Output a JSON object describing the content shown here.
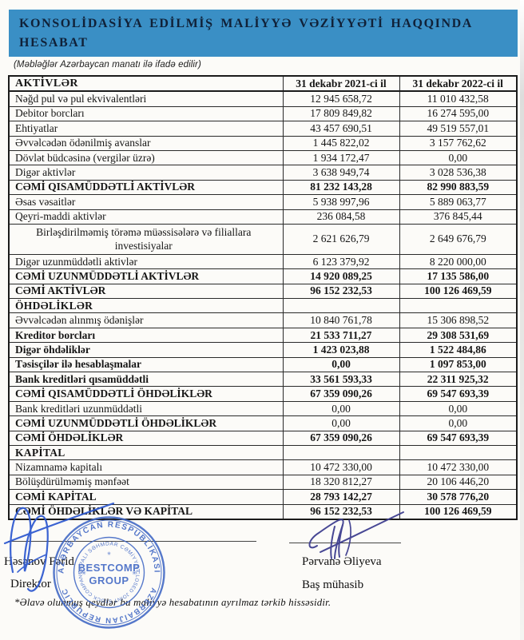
{
  "report": {
    "title_line1": "KONSOLİDASİYA EDİLMİŞ MALİYYƏ VƏZİYYƏTİ HAQQINDA",
    "title_line2": "HESABAT",
    "subtitle": "(Məbləğlər Azərbaycan manatı ilə ifadə edilir)",
    "footnote": "*Əlavə olunmuş qeydlər bu maliyyə hesabatının ayrılmaz tərkib hissəsidir."
  },
  "colors": {
    "band_blue": "#3a8fc5",
    "title_text": "#102138",
    "stamp_blue": "#3f66c4",
    "sig_left_ink": "#2b57cf",
    "sig_right_ink": "#3e3e8f"
  },
  "table": {
    "columns": [
      "AKTİVLƏR",
      "31 dekabr 2021-ci il",
      "31 dekabr 2022-ci il"
    ],
    "rows": [
      {
        "label": "Nəğd pul və pul ekvivalentləri",
        "val_2021": "12 945 658,72",
        "val_2022": "11 010 432,58",
        "emphasis": "normal"
      },
      {
        "label": "Debitor borcları",
        "val_2021": "17 809 849,82",
        "val_2022": "16 274 595,00",
        "emphasis": "normal"
      },
      {
        "label": "Ehtiyatlar",
        "val_2021": "43 457 690,51",
        "val_2022": "49 519 557,01",
        "emphasis": "normal"
      },
      {
        "label": "Əvvəlcədən ödənilmiş avanslar",
        "val_2021": "1 445 822,02",
        "val_2022": "3 157 762,62",
        "emphasis": "normal"
      },
      {
        "label": "Dövlət büdcəsinə (vergilər üzrə)",
        "val_2021": "1 934 172,47",
        "val_2022": "0,00",
        "emphasis": "normal"
      },
      {
        "label": "Digər aktivlər",
        "val_2021": "3 638 949,74",
        "val_2022": "3 028 536,38",
        "emphasis": "normal"
      },
      {
        "label": "CƏMİ QISAMÜDDƏTLİ AKTİVLƏR",
        "val_2021": "81 232 143,28",
        "val_2022": "82 990 883,59",
        "emphasis": "total"
      },
      {
        "label": "Əsas vəsaitlər",
        "val_2021": "5 938 997,96",
        "val_2022": "5 889 063,77",
        "emphasis": "normal"
      },
      {
        "label": "Qeyri-maddi aktivlər",
        "val_2021": "236 084,58",
        "val_2022": "376 845,44",
        "emphasis": "normal"
      },
      {
        "label": "Birləşdirilməmiş törəmə müəssisələrə və filiallara investisiyalar",
        "val_2021": "2 621 626,79",
        "val_2022": "2 649 676,79",
        "emphasis": "indent"
      },
      {
        "label": "Digər uzunmüddətli aktivlər",
        "val_2021": "6 123 379,92",
        "val_2022": "8 220 000,00",
        "emphasis": "normal"
      },
      {
        "label": "CƏMİ UZUNMÜDDƏTLİ AKTİVLƏR",
        "val_2021": "14 920 089,25",
        "val_2022": "17 135 586,00",
        "emphasis": "total"
      },
      {
        "label": "CƏMİ AKTİVLƏR",
        "val_2021": "96 152 232,53",
        "val_2022": "100 126 469,59",
        "emphasis": "total"
      },
      {
        "label": "ÖHDƏLİKLƏR",
        "val_2021": "",
        "val_2022": "",
        "emphasis": "section"
      },
      {
        "label": "Əvvəlcədən alınmış ödənişlər",
        "val_2021": "10 840 761,78",
        "val_2022": "15 306 898,52",
        "emphasis": "normal"
      },
      {
        "label": "Kreditor borcları",
        "val_2021": "21 533 711,27",
        "val_2022": "29 308 531,69",
        "emphasis": "total"
      },
      {
        "label": "Digər öhdəliklər",
        "val_2021": "1 423 023,88",
        "val_2022": "1 522 484,86",
        "emphasis": "total"
      },
      {
        "label": "Təsisçilər ilə hesablaşmalar",
        "val_2021": "0,00",
        "val_2022": "1 097 853,00",
        "emphasis": "total"
      },
      {
        "label": "Bank kreditləri qısamüddətli",
        "val_2021": "33 561 593,33",
        "val_2022": "22 311 925,32",
        "emphasis": "total"
      },
      {
        "label": "CƏMİ QISAMÜDDƏTLİ ÖHDƏLİKLƏR",
        "val_2021": "67 359 090,26",
        "val_2022": "69 547 693,39",
        "emphasis": "total"
      },
      {
        "label": "Bank kreditləri uzunmüddətli",
        "val_2021": "0,00",
        "val_2022": "0,00",
        "emphasis": "normal"
      },
      {
        "label": "CƏMİ UZUNMÜDDƏTLİ ÖHDƏLİKLƏR",
        "val_2021": "0,00",
        "val_2022": "0,00",
        "emphasis": "label-bold"
      },
      {
        "label": "CƏMİ ÖHDƏLİKLƏR",
        "val_2021": "67 359 090,26",
        "val_2022": "69 547 693,39",
        "emphasis": "total"
      },
      {
        "label": "KAPİTAL",
        "val_2021": "",
        "val_2022": "",
        "emphasis": "section"
      },
      {
        "label": "Nizamnamə kapitalı",
        "val_2021": "10 472 330,00",
        "val_2022": "10 472 330,00",
        "emphasis": "normal"
      },
      {
        "label": "Bölüşdürülməmiş mənfəət",
        "val_2021": "18 320 812,27",
        "val_2022": "20 106 446,20",
        "emphasis": "normal"
      },
      {
        "label": "CƏMİ KAPİTAL",
        "val_2021": "28 793 142,27",
        "val_2022": "30 578 776,20",
        "emphasis": "total"
      },
      {
        "label": "CƏMİ ÖHDƏLİKLƏR VƏ KAPİTAL",
        "val_2021": "96 152 232,53",
        "val_2022": "100 126 469,59",
        "emphasis": "total"
      }
    ]
  },
  "signatories": {
    "left": {
      "name": "Həsənov Fərid",
      "role": "Direktor"
    },
    "right": {
      "name": "Pərvanə Əliyeva",
      "role": "Baş mühasib"
    }
  },
  "stamp": {
    "center_line1": "BESTCOMP",
    "center_line2": "GROUP",
    "outer_top": "AZƏRBAYCAN RESPUBLİKASI",
    "outer_bottom": "AZERBAIJAN REPUBLIC",
    "inner_top": "QAPALI SƏHMDAR CƏMİYYƏTİ",
    "inner_bottom": "CLOSED JOINT STOCK COMPANY"
  }
}
